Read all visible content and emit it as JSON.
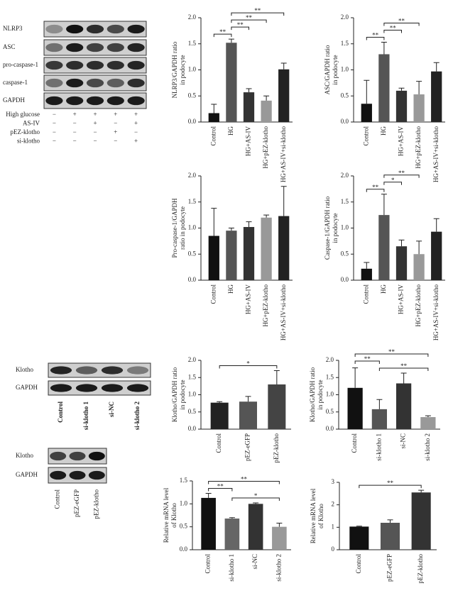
{
  "blots": {
    "panel_a": {
      "rows": [
        "NLRP3",
        "ASC",
        "pro-caspase-1",
        "caspase-1",
        "GAPDH"
      ],
      "treatments": [
        {
          "name": "High glucose",
          "signs": [
            "−",
            "+",
            "+",
            "+",
            "+"
          ]
        },
        {
          "name": "AS-IV",
          "signs": [
            "−",
            "−",
            "+",
            "−",
            "+"
          ]
        },
        {
          "name": "pEZ-klotho",
          "signs": [
            "−",
            "−",
            "−",
            "+",
            "−"
          ]
        },
        {
          "name": "si-klotho",
          "signs": [
            "−",
            "−",
            "−",
            "−",
            "+"
          ]
        }
      ]
    },
    "panel_b": {
      "rows": [
        "Klotho",
        "GAPDH"
      ],
      "lanes": [
        "Control",
        "si-klotho 1",
        "si-NC",
        "si-klotho 2"
      ]
    },
    "panel_c": {
      "rows": [
        "Klotho",
        "GAPDH"
      ],
      "lanes": [
        "Control",
        "pEZ-eGFP",
        "pEZ-klotho"
      ]
    }
  },
  "chart_data": [
    {
      "type": "bar",
      "ylabel": [
        "NLRP3/GAPDH ratio",
        "in podocyte"
      ],
      "categories": [
        "Control",
        "HG",
        "HG+AS-IV",
        "HG+pEZ-klotho",
        "HG+AS-IV+si-klotho"
      ],
      "values": [
        0.17,
        1.52,
        0.57,
        0.41,
        1.01
      ],
      "errors": [
        0.17,
        0.07,
        0.07,
        0.09,
        0.12
      ],
      "colors": [
        "#111111",
        "#555555",
        "#333333",
        "#999999",
        "#222222"
      ],
      "ylim": [
        0,
        2
      ],
      "yticks": [
        {
          "value": 0,
          "label": "0.0"
        },
        0.5,
        {
          "value": 1,
          "label": "1.0"
        },
        1.5,
        {
          "value": 2,
          "label": "2.0"
        }
      ],
      "brackets": [
        {
          "between": [
            "Control",
            "HG"
          ],
          "label": "**"
        },
        {
          "between": [
            "HG",
            "HG+AS-IV"
          ],
          "label": "**"
        },
        {
          "between": [
            "HG",
            "HG+pEZ-klotho"
          ],
          "label": "**"
        },
        {
          "between": [
            "HG",
            "HG+AS-IV+si-klotho"
          ],
          "label": "**"
        }
      ]
    },
    {
      "type": "bar",
      "ylabel": [
        "ASC/GAPDH ratio",
        "in podocyte"
      ],
      "categories": [
        "Control",
        "HG",
        "HG+AS-IV",
        "HG+pEZ-klotho",
        "HG+AS-IV+si-klotho"
      ],
      "values": [
        0.35,
        1.3,
        0.6,
        0.53,
        0.97
      ],
      "errors": [
        0.45,
        0.23,
        0.05,
        0.25,
        0.17
      ],
      "colors": [
        "#111111",
        "#555555",
        "#333333",
        "#999999",
        "#222222"
      ],
      "ylim": [
        0,
        2
      ],
      "yticks": [
        {
          "value": 0,
          "label": "0.0"
        },
        0.5,
        {
          "value": 1,
          "label": "1.0"
        },
        1.5,
        {
          "value": 2,
          "label": "2.0"
        }
      ],
      "brackets": [
        {
          "between": [
            "Control",
            "HG"
          ],
          "label": "**"
        },
        {
          "between": [
            "HG",
            "HG+AS-IV"
          ],
          "label": "**"
        },
        {
          "between": [
            "HG",
            "HG+pEZ-klotho"
          ],
          "label": "**"
        }
      ]
    },
    {
      "type": "bar",
      "ylabel": [
        "Pro-caspase-1/GAPDH",
        "ratio in podocyte"
      ],
      "categories": [
        "Control",
        "HG",
        "HG+AS-IV",
        "HG+pEZ-klotho",
        "HG+AS-IV+si-klotho"
      ],
      "values": [
        0.85,
        0.95,
        1.02,
        1.2,
        1.23
      ],
      "errors": [
        0.53,
        0.05,
        0.1,
        0.05,
        0.57
      ],
      "colors": [
        "#111111",
        "#555555",
        "#333333",
        "#999999",
        "#222222"
      ],
      "ylim": [
        0,
        2
      ],
      "yticks": [
        {
          "value": 0,
          "label": "0.0"
        },
        0.5,
        {
          "value": 1,
          "label": "1.0"
        },
        1.5,
        {
          "value": 2,
          "label": "2.0"
        }
      ],
      "brackets": []
    },
    {
      "type": "bar",
      "ylabel": [
        "Caspase-1/GAPDH ratio",
        "in podocyte"
      ],
      "categories": [
        "Control",
        "HG",
        "HG+AS-IV",
        "HG+pEZ-klotho",
        "HG+AS-IV+si-klotho"
      ],
      "values": [
        0.22,
        1.25,
        0.65,
        0.5,
        0.93
      ],
      "errors": [
        0.12,
        0.4,
        0.12,
        0.25,
        0.25
      ],
      "colors": [
        "#111111",
        "#555555",
        "#333333",
        "#999999",
        "#222222"
      ],
      "ylim": [
        0,
        2
      ],
      "yticks": [
        {
          "value": 0,
          "label": "0.0"
        },
        0.5,
        {
          "value": 1,
          "label": "1.0"
        },
        1.5,
        {
          "value": 2,
          "label": "2.0"
        }
      ],
      "brackets": [
        {
          "between": [
            "Control",
            "HG"
          ],
          "label": "**"
        },
        {
          "between": [
            "HG",
            "HG+AS-IV"
          ],
          "label": "*"
        },
        {
          "between": [
            "HG",
            "HG+pEZ-klotho"
          ],
          "label": "**"
        }
      ]
    },
    {
      "type": "bar",
      "ylabel": [
        "Klotho/GAPDH ratio",
        "in podocyte"
      ],
      "categories": [
        "Control",
        "pEZ-eGFP",
        "pEZ-klotho"
      ],
      "values": [
        0.77,
        0.8,
        1.3
      ],
      "errors": [
        0.03,
        0.15,
        0.4
      ],
      "colors": [
        "#222222",
        "#555555",
        "#444444"
      ],
      "ylim": [
        0,
        2
      ],
      "yticks": [
        {
          "value": 0,
          "label": "0.0"
        },
        0.5,
        {
          "value": 1,
          "label": "1.0"
        },
        1.5,
        {
          "value": 2,
          "label": "2.0"
        }
      ],
      "brackets": [
        {
          "between": [
            "Control",
            "pEZ-klotho"
          ],
          "label": "*"
        }
      ]
    },
    {
      "type": "bar",
      "ylabel": [
        "Klotho/GAPDH ratio",
        "in podocyte"
      ],
      "categories": [
        "Control",
        "si-klotho 1",
        "si-NC",
        "si-klotho 2"
      ],
      "values": [
        1.2,
        0.58,
        1.33,
        0.35
      ],
      "errors": [
        0.58,
        0.28,
        0.3,
        0.04
      ],
      "colors": [
        "#111111",
        "#555555",
        "#333333",
        "#999999"
      ],
      "ylim": [
        0,
        2
      ],
      "yticks": [
        {
          "value": 0,
          "label": "0.0"
        },
        0.5,
        {
          "value": 1,
          "label": "1.0"
        },
        1.5,
        {
          "value": 2,
          "label": "2.0"
        }
      ],
      "brackets": [
        {
          "between": [
            "si-klotho 1",
            "si-klotho 2"
          ],
          "label": "**"
        },
        {
          "between": [
            "Control",
            "si-klotho 1"
          ],
          "label": "**"
        },
        {
          "between": [
            "Control",
            "si-klotho 2"
          ],
          "label": "**"
        }
      ]
    },
    {
      "type": "bar",
      "ylabel": [
        "Relative mRNA level",
        "of Klotho"
      ],
      "categories": [
        "Control",
        "si-klotho 1",
        "si-NC",
        "si-klotho 2"
      ],
      "values": [
        1.13,
        0.68,
        1.0,
        0.5
      ],
      "errors": [
        0.1,
        0.02,
        0.02,
        0.08
      ],
      "colors": [
        "#111111",
        "#666666",
        "#333333",
        "#999999"
      ],
      "ylim": [
        0,
        1.5
      ],
      "yticks": [
        {
          "value": 0,
          "label": "0.0"
        },
        0.5,
        {
          "value": 1,
          "label": "1.0"
        },
        1.5
      ],
      "brackets": [
        {
          "between": [
            "si-klotho 1",
            "si-klotho 2"
          ],
          "label": "*"
        },
        {
          "between": [
            "Control",
            "si-klotho 1"
          ],
          "label": "**"
        },
        {
          "between": [
            "Control",
            "si-klotho 2"
          ],
          "label": "**"
        }
      ]
    },
    {
      "type": "bar",
      "ylabel": [
        "Relative mRNA level",
        "of Klotho"
      ],
      "categories": [
        "Control",
        "pEZ-eGFP",
        "pEZ-klotho"
      ],
      "values": [
        1.03,
        1.2,
        2.55
      ],
      "errors": [
        0.02,
        0.13,
        0.1
      ],
      "colors": [
        "#111111",
        "#555555",
        "#333333"
      ],
      "ylim": [
        0,
        3
      ],
      "yticks": [
        0,
        1,
        2,
        3
      ],
      "brackets": [
        {
          "between": [
            "Control",
            "pEZ-klotho"
          ],
          "label": "**"
        }
      ]
    }
  ]
}
